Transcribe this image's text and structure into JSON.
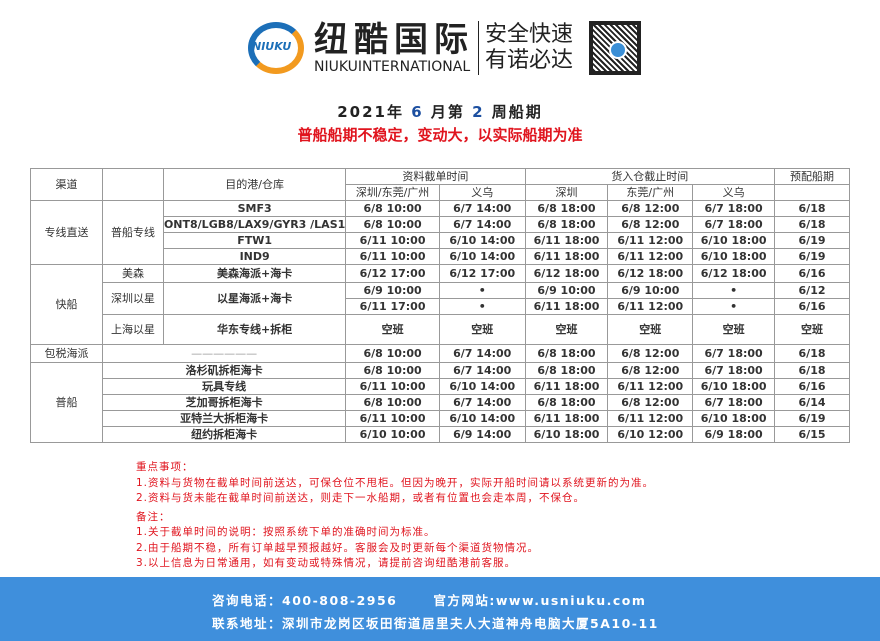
{
  "header": {
    "logo_text": "NIUKU",
    "brand_cn": "纽酷国际",
    "brand_en": "NIUKUINTERNATIONAL",
    "slogan_1": "安全快速",
    "slogan_2": "有诺必达",
    "qr_icon": "qr-code"
  },
  "title": {
    "prefix": "2021年 ",
    "month": "6",
    "mid": " 月第 ",
    "week": "2",
    "suffix": " 周船期"
  },
  "subtitle": "普船船期不稳定，变动大，以实际船期为准",
  "colors": {
    "accent_red": "#e0141e",
    "footer_blue": "#3f8fdc",
    "title_blue": "#1c4fa0"
  },
  "table": {
    "headers": {
      "channel": "渠道",
      "dest": "目的港/仓库",
      "docs": "资料截单时间",
      "warehouse": "货入仓截止时间",
      "etd": "预配船期",
      "docs_sz": "深圳/东莞/广州",
      "docs_yw": "义乌",
      "wh_sz": "深圳",
      "wh_dg": "东莞/广州",
      "wh_yw": "义乌"
    },
    "groups": {
      "direct": "专线直送",
      "direct_sub": "普船专线",
      "fast": "快船",
      "matson": "美森",
      "sz_yx": "深圳以星",
      "sh_yx": "上海以星",
      "bond": "包税海派",
      "normal": "普船"
    },
    "rows": [
      [
        "SMF3",
        "6/8 10:00",
        "6/7 14:00",
        "6/8 18:00",
        "6/8 12:00",
        "6/7 18:00",
        "6/18"
      ],
      [
        "ONT8/LGB8/LAX9/GYR3 /LAS1",
        "6/8 10:00",
        "6/7 14:00",
        "6/8 18:00",
        "6/8 12:00",
        "6/7 18:00",
        "6/18"
      ],
      [
        "FTW1",
        "6/11 10:00",
        "6/10 14:00",
        "6/11 18:00",
        "6/11 12:00",
        "6/10 18:00",
        "6/19"
      ],
      [
        "IND9",
        "6/11 10:00",
        "6/10 14:00",
        "6/11 18:00",
        "6/11 12:00",
        "6/10 18:00",
        "6/19"
      ],
      [
        "美森海派+海卡",
        "6/12 17:00",
        "6/12 17:00",
        "6/12 18:00",
        "6/12 18:00",
        "6/12 18:00",
        "6/16"
      ],
      [
        "以星海派+海卡",
        "6/9 10:00",
        "•",
        "6/9 10:00",
        "6/9 10:00",
        "•",
        "6/12"
      ],
      [
        "",
        "6/11 17:00",
        "•",
        "6/11 18:00",
        "6/11 12:00",
        "•",
        "6/16"
      ],
      [
        "华东专线+拆柜",
        "空班",
        "空班",
        "空班",
        "空班",
        "空班",
        "空班"
      ],
      [
        "——————",
        "6/8 10:00",
        "6/7 14:00",
        "6/8 18:00",
        "6/8 12:00",
        "6/7 18:00",
        "6/18"
      ],
      [
        "洛杉矶拆柜海卡",
        "6/8 10:00",
        "6/7 14:00",
        "6/8 18:00",
        "6/8 12:00",
        "6/7 18:00",
        "6/18"
      ],
      [
        "玩具专线",
        "6/11 10:00",
        "6/10 14:00",
        "6/11 18:00",
        "6/11 12:00",
        "6/10 18:00",
        "6/16"
      ],
      [
        "芝加哥拆柜海卡",
        "6/8 10:00",
        "6/7 14:00",
        "6/8 18:00",
        "6/8 12:00",
        "6/7 18:00",
        "6/14"
      ],
      [
        "亚特兰大拆柜海卡",
        "6/11 10:00",
        "6/10 14:00",
        "6/11 18:00",
        "6/11 12:00",
        "6/10 18:00",
        "6/19"
      ],
      [
        "纽约拆柜海卡",
        "6/10 10:00",
        "6/9 14:00",
        "6/10 18:00",
        "6/10 12:00",
        "6/9 18:00",
        "6/15"
      ]
    ]
  },
  "notes": {
    "key_title": "重点事项：",
    "key": [
      "1.资料与货物在截单时间前送达，可保仓位不甩柜。但因为晚开，实际开船时间请以系统更新的为准。",
      "2.资料与货未能在截单时间前送达，则走下一水船期，或者有位置也会走本周，不保仓。"
    ],
    "remark_title": "备注：",
    "remarks": [
      "1.关于截单时间的说明：按照系统下单的准确时间为标准。",
      "2.由于船期不稳，所有订单越早预报越好。客服会及时更新每个渠道货物情况。",
      "3.以上信息为日常通用，如有变动或特殊情况，请提前咨询纽酷港前客服。"
    ]
  },
  "footer": {
    "phone_label": "咨询电话：",
    "phone": "400-808-2956",
    "site_label": "官方网站:",
    "site": "www.usniuku.com",
    "address_label": "联系地址：",
    "address": "深圳市龙岗区坂田街道居里夫人大道神舟电脑大厦5A10-11"
  }
}
